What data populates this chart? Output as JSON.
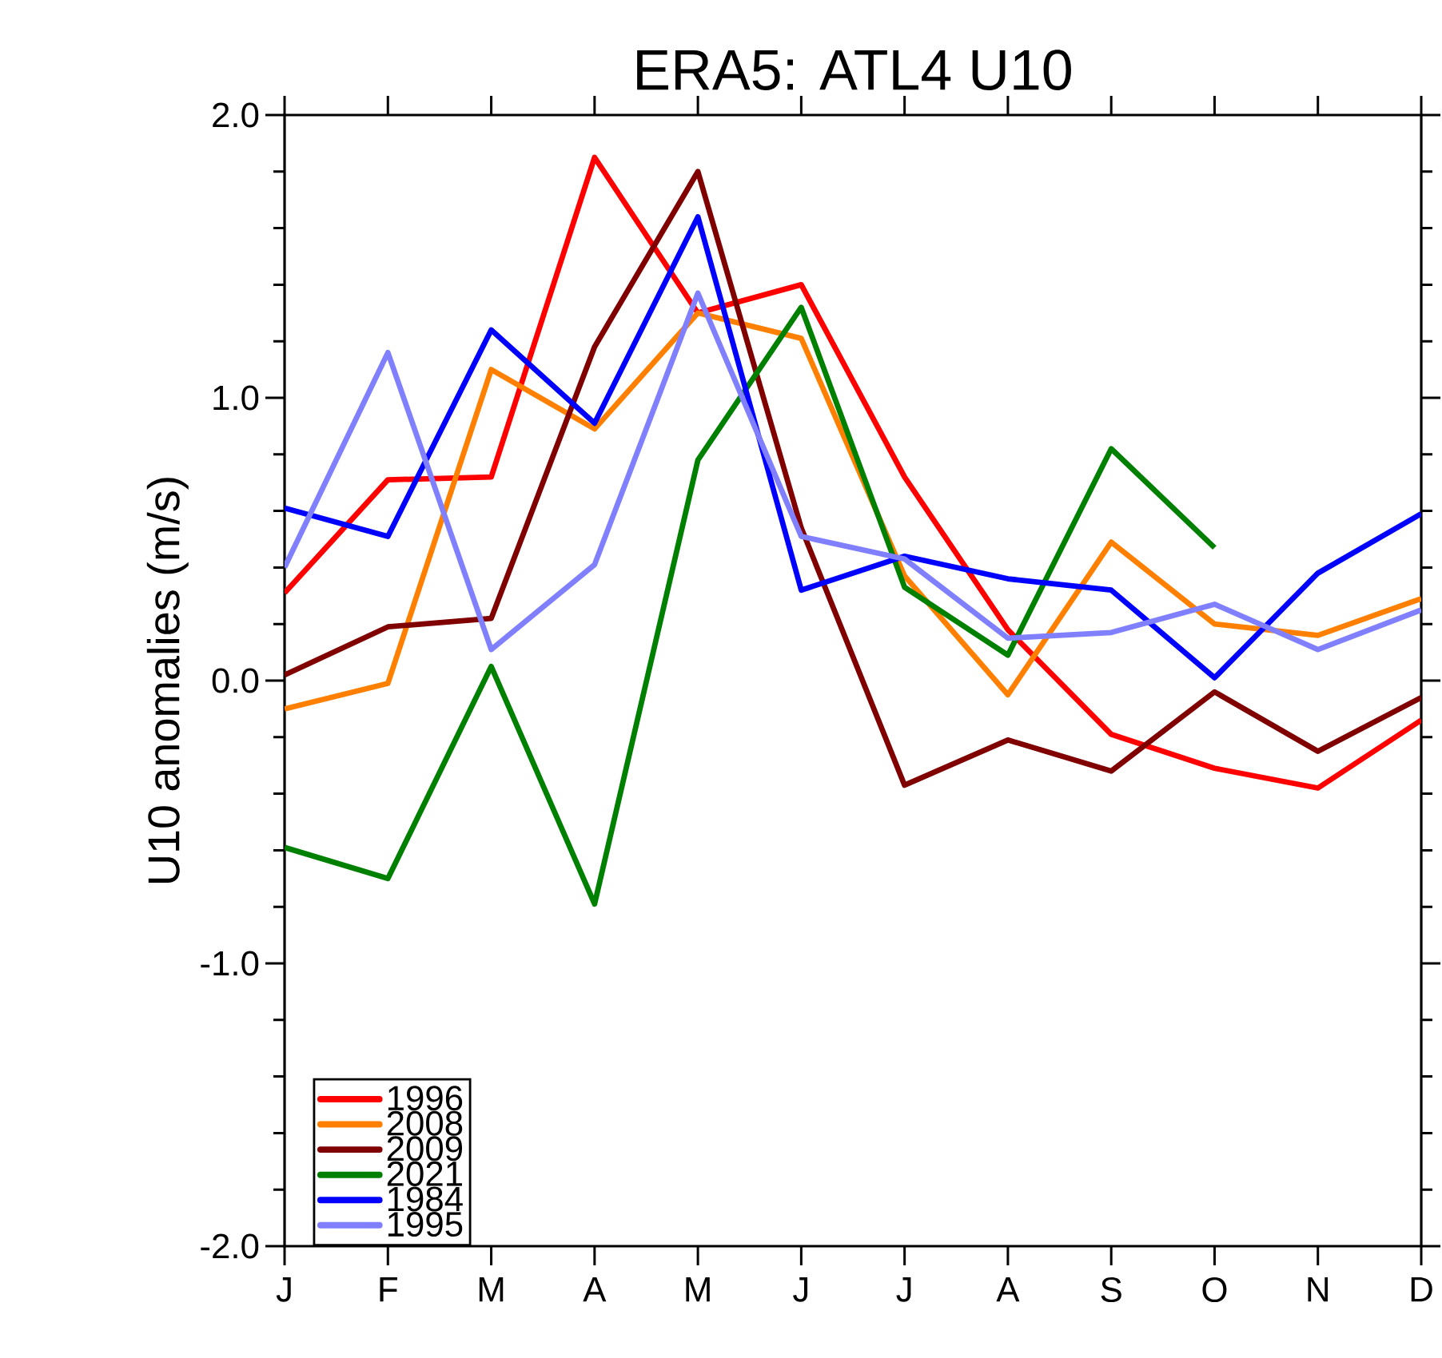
{
  "chart_data": {
    "type": "line",
    "title": "ERA5: ATL4 U10",
    "ylabel": "U10 anomalies (m/s)",
    "categories": [
      "J",
      "F",
      "M",
      "A",
      "M",
      "J",
      "J",
      "A",
      "S",
      "O",
      "N",
      "D"
    ],
    "ylim": [
      -2,
      2
    ],
    "yticks": [
      {
        "value": -2,
        "label": "-2.0"
      },
      {
        "value": -1,
        "label": "-1.0"
      },
      {
        "value": 0,
        "label": "0.0"
      },
      {
        "value": 1,
        "label": "1.0"
      },
      {
        "value": 2,
        "label": "2.0"
      }
    ],
    "legend": "bottom left",
    "series": [
      {
        "name": "1996",
        "color": "#ff0000",
        "values": [
          0.31,
          0.71,
          0.72,
          1.85,
          1.3,
          1.4,
          0.72,
          0.18,
          -0.19,
          -0.31,
          -0.38,
          -0.14
        ]
      },
      {
        "name": "2008",
        "color": "#ff8000",
        "values": [
          -0.1,
          -0.01,
          1.1,
          0.89,
          1.3,
          1.21,
          0.37,
          -0.05,
          0.49,
          0.2,
          0.16,
          0.29
        ]
      },
      {
        "name": "2009",
        "color": "#800000",
        "values": [
          0.02,
          0.19,
          0.22,
          1.18,
          1.8,
          0.54,
          -0.37,
          -0.21,
          -0.32,
          -0.04,
          -0.25,
          -0.06
        ]
      },
      {
        "name": "2021",
        "color": "#008000",
        "values": [
          -0.59,
          -0.7,
          0.05,
          -0.79,
          0.78,
          1.32,
          0.33,
          0.09,
          0.82,
          0.47,
          null,
          null
        ]
      },
      {
        "name": "1984",
        "color": "#0000ff",
        "values": [
          0.61,
          0.51,
          1.24,
          0.91,
          1.64,
          0.32,
          0.44,
          0.36,
          0.32,
          0.01,
          0.38,
          0.59
        ]
      },
      {
        "name": "1995",
        "color": "#8080ff",
        "values": [
          0.4,
          1.16,
          0.11,
          0.41,
          1.37,
          0.51,
          0.43,
          0.15,
          0.17,
          0.27,
          0.11,
          0.25
        ]
      }
    ]
  }
}
